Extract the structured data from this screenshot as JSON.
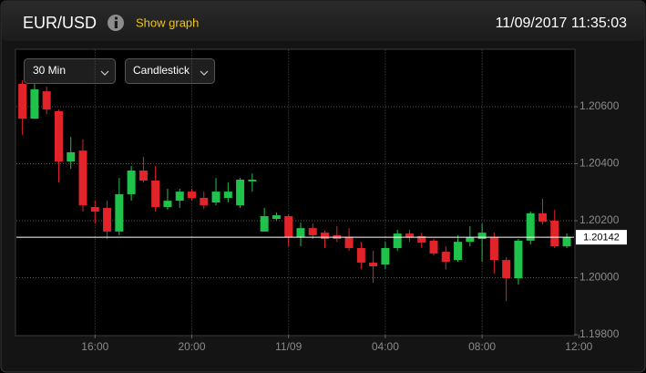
{
  "header": {
    "title": "EUR/USD",
    "link": "Show graph",
    "datetime": "11/09/2017 11:35:03"
  },
  "controls": {
    "interval": "30 Min",
    "chart_style": "Candlestick"
  },
  "chart_data": {
    "type": "candlestick",
    "x": [
      13,
      13.5,
      14,
      14.5,
      15,
      15.5,
      16,
      16.5,
      17,
      17.5,
      18,
      18.5,
      19,
      19.5,
      20,
      20.5,
      21,
      21.5,
      22,
      22.5,
      23,
      23.5,
      24,
      24.5,
      25,
      25.5,
      26,
      26.5,
      27,
      27.5,
      28,
      28.5,
      29,
      29.5,
      30,
      30.5,
      31,
      31.5,
      32,
      32.5,
      33,
      33.5,
      34,
      34.5,
      35,
      35.5
    ],
    "open": [
      1.2068,
      1.20558,
      1.20654,
      1.20584,
      1.20408,
      1.20446,
      1.20248,
      1.20245,
      1.20162,
      1.20293,
      1.20376,
      1.20341,
      1.20248,
      1.2027,
      1.20302,
      1.2028,
      1.20264,
      1.2028,
      1.20254,
      1.20338,
      1.20162,
      1.20206,
      1.20216,
      1.20142,
      1.20174,
      1.20158,
      1.20149,
      1.20142,
      1.20104,
      1.20053,
      1.20046,
      1.20104,
      1.20155,
      1.20146,
      1.2013,
      1.20091,
      1.20062,
      1.20126,
      1.20136,
      1.20142,
      1.20062,
      1.19998,
      1.2013,
      1.20226,
      1.202,
      1.2011
    ],
    "high": [
      1.20693,
      1.2068,
      1.2067,
      1.2059,
      1.20494,
      1.20485,
      1.2027,
      1.2027,
      1.2035,
      1.20392,
      1.20424,
      1.20392,
      1.20312,
      1.20312,
      1.20312,
      1.20302,
      1.2035,
      1.20334,
      1.2035,
      1.20366,
      1.20245,
      1.20229,
      1.20222,
      1.20194,
      1.2019,
      1.20165,
      1.20181,
      1.20174,
      1.20126,
      1.20094,
      1.20126,
      1.20168,
      1.20168,
      1.20158,
      1.20136,
      1.2011,
      1.20149,
      1.20181,
      1.2019,
      1.20158,
      1.20072,
      1.20136,
      1.20232,
      1.20277,
      1.20238,
      1.20155
    ],
    "low": [
      1.20501,
      1.20558,
      1.20574,
      1.20334,
      1.20382,
      1.20232,
      1.2019,
      1.20136,
      1.20149,
      1.2027,
      1.20334,
      1.20232,
      1.20238,
      1.20245,
      1.2027,
      1.20242,
      1.20254,
      1.20264,
      1.20245,
      1.20302,
      1.20162,
      1.202,
      1.2011,
      1.2011,
      1.20136,
      1.20104,
      1.20126,
      1.20094,
      1.2003,
      1.19982,
      1.2003,
      1.20094,
      1.20126,
      1.20104,
      1.20078,
      1.2003,
      1.20056,
      1.2011,
      1.20056,
      1.20014,
      1.19918,
      1.19976,
      1.20117,
      1.20187,
      1.20104,
      1.20104
    ],
    "close": [
      1.20558,
      1.20661,
      1.2059,
      1.20408,
      1.2044,
      1.20254,
      1.20232,
      1.20162,
      1.20293,
      1.20376,
      1.20341,
      1.20248,
      1.2027,
      1.20302,
      1.2028,
      1.20254,
      1.20302,
      1.20302,
      1.20344,
      1.20344,
      1.20216,
      1.20219,
      1.20142,
      1.20174,
      1.20149,
      1.20136,
      1.20136,
      1.20104,
      1.20053,
      1.2004,
      1.20104,
      1.20155,
      1.20142,
      1.20123,
      1.20085,
      1.20056,
      1.20126,
      1.20142,
      1.20158,
      1.20062,
      1.19998,
      1.2013,
      1.20226,
      1.20197,
      1.2011,
      1.20142
    ],
    "up_color": "#1fc24a",
    "down_color": "#e2242a",
    "last_price": 1.20142,
    "xlim": [
      12.75,
      35.8
    ],
    "xticks": [
      {
        "value": 16,
        "label": "16:00"
      },
      {
        "value": 20,
        "label": "20:00"
      },
      {
        "value": 24,
        "label": "11/09"
      },
      {
        "value": 28,
        "label": "04:00"
      },
      {
        "value": 32,
        "label": "08:00"
      },
      {
        "value": 36,
        "label": "12:00"
      }
    ],
    "ylim": [
      1.198,
      1.208
    ],
    "yticks": [
      {
        "value": 1.198,
        "label": "1.19800"
      },
      {
        "value": 1.2,
        "label": "1.20000"
      },
      {
        "value": 1.202,
        "label": "1.20200"
      },
      {
        "value": 1.204,
        "label": "1.20400"
      },
      {
        "value": 1.206,
        "label": "1.20600"
      }
    ],
    "grid": true
  }
}
